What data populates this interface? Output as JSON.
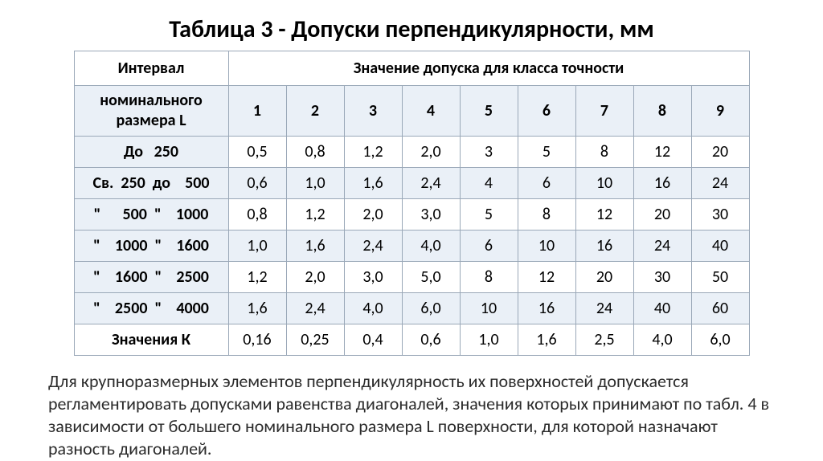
{
  "title": "Таблица 3 - Допуски перпендикулярности, мм",
  "header": {
    "interval": "Интервал",
    "span": "Значение допуска для класса точности",
    "sub_interval_l1": "номинального",
    "sub_interval_l2": "размера L",
    "classes": [
      "1",
      "2",
      "3",
      "4",
      "5",
      "6",
      "7",
      "8",
      "9"
    ]
  },
  "rows": [
    {
      "label": "До   250",
      "vals": [
        "0,5",
        "0,8",
        "1,2",
        "2,0",
        "3",
        "5",
        "8",
        "12",
        "20"
      ]
    },
    {
      "label": "Св.  250  до    500",
      "vals": [
        "0,6",
        "1,0",
        "1,6",
        "2,4",
        "4",
        "6",
        "10",
        "16",
        "24"
      ]
    },
    {
      "label": "\"      500  \"    1000",
      "vals": [
        "0,8",
        "1,2",
        "2,0",
        "3,0",
        "5",
        "8",
        "12",
        "20",
        "30"
      ]
    },
    {
      "label": "\"    1000  \"    1600",
      "vals": [
        "1,0",
        "1,6",
        "2,4",
        "4,0",
        "6",
        "10",
        "16",
        "24",
        "40"
      ]
    },
    {
      "label": "\"    1600  \"    2500",
      "vals": [
        "1,2",
        "2,0",
        "3,0",
        "5,0",
        "8",
        "12",
        "20",
        "30",
        "50"
      ]
    },
    {
      "label": "\"    2500  \"    4000",
      "vals": [
        "1,6",
        "2,4",
        "4,0",
        "6,0",
        "10",
        "16",
        "24",
        "40",
        "60"
      ]
    },
    {
      "label": "Значения К",
      "vals": [
        "0,16",
        "0,25",
        "0,4",
        "0,6",
        "1,0",
        "1,6",
        "2,5",
        "4,0",
        "6,0"
      ]
    }
  ],
  "paragraph": " Для крупноразмерных элементов перпендикулярность их поверхностей допускается регламентировать допусками равенства диагоналей, значения которых принимают по табл. 4 в зависимости от большего номинального размера L поверхности, для которой назначают разность диагоналей.",
  "style": {
    "header_bg": "#eaf0f7",
    "border_color": "#9aa8b8",
    "title_fontsize": 30,
    "cell_fontsize": 20,
    "para_fontsize": 22
  }
}
